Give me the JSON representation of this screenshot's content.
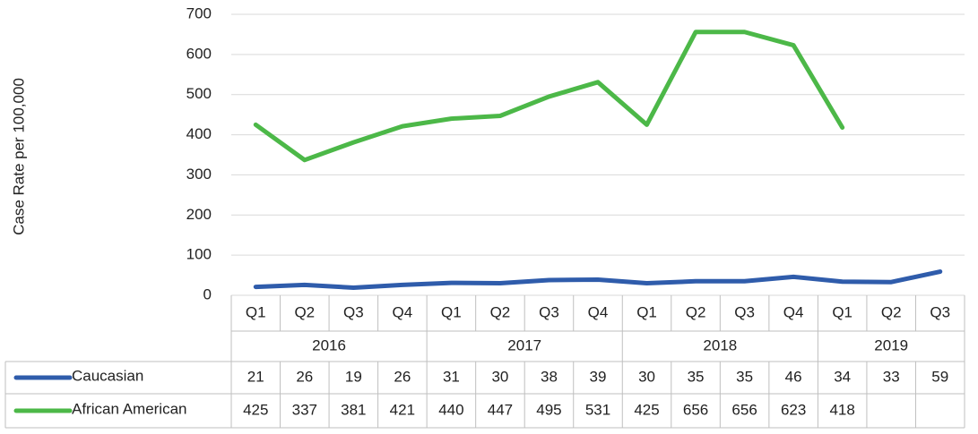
{
  "chart_data": {
    "type": "line",
    "y_axis_label": "Case Rate per 100,000",
    "categories": [
      "Q1",
      "Q2",
      "Q3",
      "Q4",
      "Q1",
      "Q2",
      "Q3",
      "Q4",
      "Q1",
      "Q2",
      "Q3",
      "Q4",
      "Q1",
      "Q2",
      "Q3"
    ],
    "years": [
      "2016",
      null,
      null,
      null,
      "2017",
      null,
      null,
      null,
      "2018",
      null,
      null,
      null,
      "2019",
      null,
      null
    ],
    "series": [
      {
        "name": "Caucasian",
        "color": "#2f5cab",
        "values": [
          21,
          26,
          19,
          26,
          31,
          30,
          38,
          39,
          30,
          35,
          35,
          46,
          34,
          33,
          59
        ]
      },
      {
        "name": "African American",
        "color": "#4cb848",
        "values": [
          425,
          337,
          381,
          421,
          440,
          447,
          495,
          531,
          425,
          656,
          656,
          623,
          418,
          null,
          null
        ]
      }
    ],
    "ylim": [
      0,
      700
    ],
    "yticks": [
      0,
      100,
      200,
      300,
      400,
      500,
      600,
      700
    ],
    "grid": true,
    "data_table": true
  }
}
